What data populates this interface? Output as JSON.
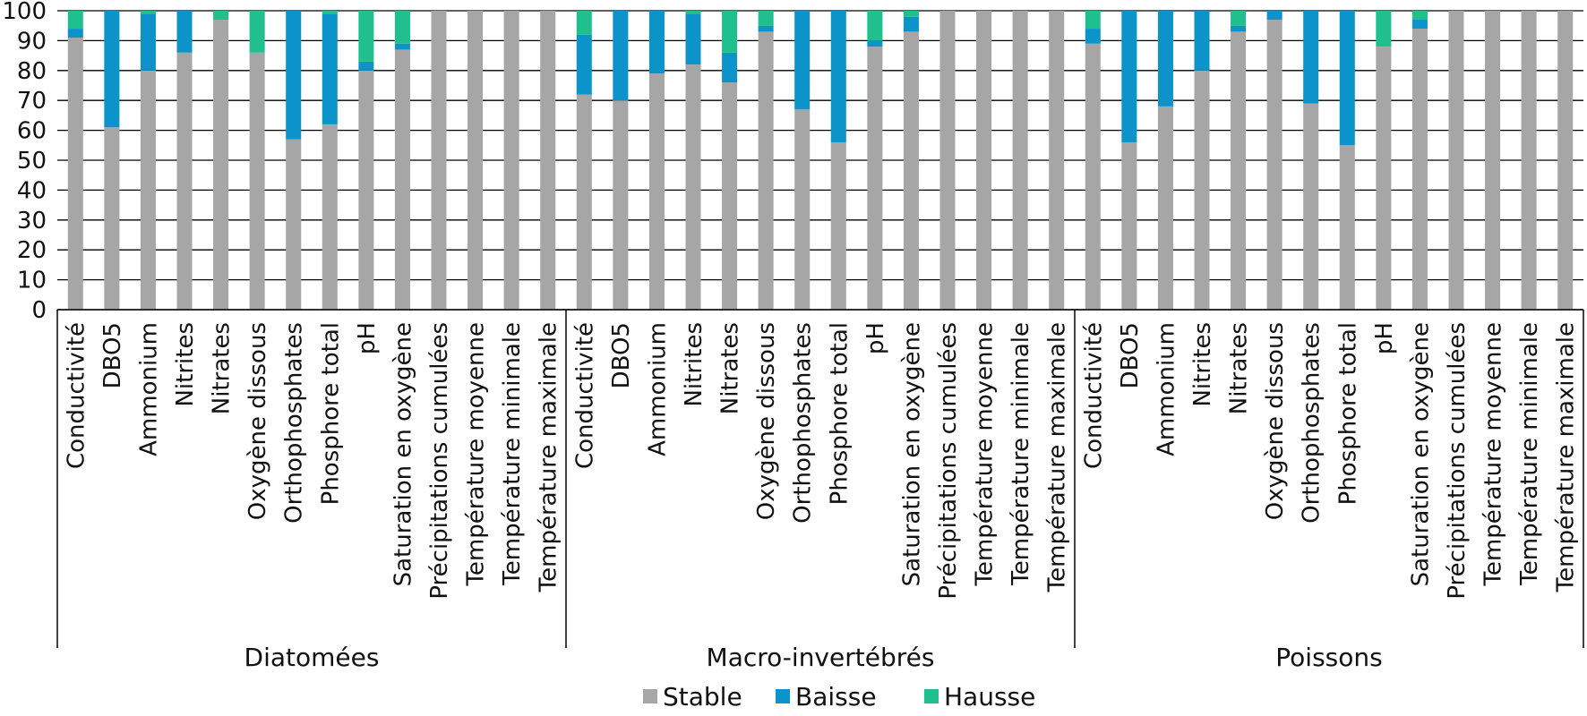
{
  "chart_data": {
    "type": "bar",
    "stacked": true,
    "ylim": [
      0,
      100
    ],
    "yticks": [
      0,
      10,
      20,
      30,
      40,
      50,
      60,
      70,
      80,
      90,
      100
    ],
    "grid": true,
    "legend_position": "bottom",
    "colors": {
      "Stable": "#a6a6a6",
      "Baisse": "#0c93c9",
      "Hausse": "#20c08e"
    },
    "groups": [
      {
        "name": "Diatomées",
        "categories": [
          "Conductivité",
          "DBO5",
          "Ammonium",
          "Nitrites",
          "Nitrates",
          "Oxygène dissous",
          "Orthophosphates",
          "Phosphore total",
          "pH",
          "Saturation en oxygène",
          "Précipitations cumulées",
          "Température moyenne",
          "Température minimale",
          "Température maximale"
        ],
        "series": [
          {
            "name": "Stable",
            "values": [
              91,
              61,
              80,
              86,
              97,
              86,
              57,
              62,
              80,
              87,
              100,
              100,
              100,
              100
            ]
          },
          {
            "name": "Baisse",
            "values": [
              3,
              39,
              19,
              14,
              0,
              0,
              43,
              37,
              3,
              2,
              0,
              0,
              0,
              0
            ]
          },
          {
            "name": "Hausse",
            "values": [
              6,
              0,
              1,
              0,
              3,
              14,
              0,
              1,
              17,
              11,
              0,
              0,
              0,
              0
            ]
          }
        ]
      },
      {
        "name": "Macro-invertébrés",
        "categories": [
          "Conductivité",
          "DBO5",
          "Ammonium",
          "Nitrites",
          "Nitrates",
          "Oxygène dissous",
          "Orthophosphates",
          "Phosphore total",
          "pH",
          "Saturation en oxygène",
          "Précipitations cumulées",
          "Température moyenne",
          "Température minimale",
          "Température maximale"
        ],
        "series": [
          {
            "name": "Stable",
            "values": [
              72,
              70,
              79,
              82,
              76,
              93,
              67,
              56,
              88,
              93,
              100,
              100,
              100,
              100
            ]
          },
          {
            "name": "Baisse",
            "values": [
              20,
              30,
              21,
              17,
              10,
              2,
              33,
              44,
              2,
              5,
              0,
              0,
              0,
              0
            ]
          },
          {
            "name": "Hausse",
            "values": [
              8,
              0,
              0,
              1,
              14,
              5,
              0,
              0,
              10,
              2,
              0,
              0,
              0,
              0
            ]
          }
        ]
      },
      {
        "name": "Poissons",
        "categories": [
          "Conductivité",
          "DBO5",
          "Ammonium",
          "Nitrites",
          "Nitrates",
          "Oxygène dissous",
          "Orthophosphates",
          "Phosphore total",
          "pH",
          "Saturation en oxygène",
          "Précipitations cumulées",
          "Température moyenne",
          "Température minimale",
          "Température maximale"
        ],
        "series": [
          {
            "name": "Stable",
            "values": [
              89,
              56,
              68,
              80,
              93,
              97,
              69,
              55,
              88,
              94,
              100,
              100,
              100,
              100
            ]
          },
          {
            "name": "Baisse",
            "values": [
              5,
              44,
              32,
              20,
              2,
              3,
              31,
              45,
              0,
              3,
              0,
              0,
              0,
              0
            ]
          },
          {
            "name": "Hausse",
            "values": [
              6,
              0,
              0,
              0,
              5,
              0,
              0,
              0,
              12,
              3,
              0,
              0,
              0,
              0
            ]
          }
        ]
      }
    ],
    "legend": [
      "Stable",
      "Baisse",
      "Hausse"
    ]
  }
}
